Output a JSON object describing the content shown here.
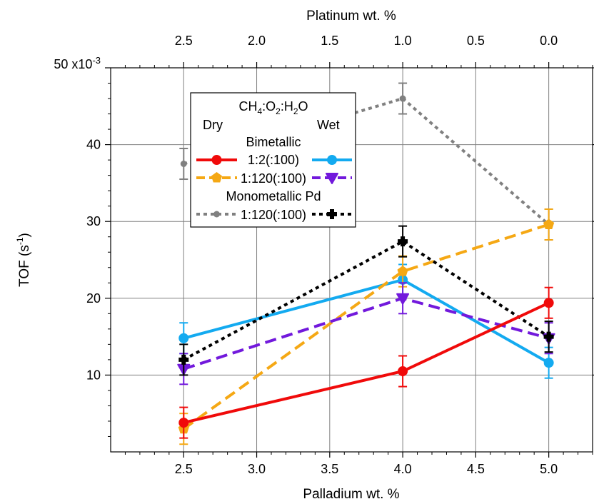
{
  "chart_data": {
    "type": "line",
    "title": "",
    "xlabel": "Palladium wt. %",
    "x2label": "Platinum wt. %",
    "ylabel_main": "TOF (s",
    "ylabel_sup": "-1",
    "ylabel_close": ")",
    "xlim": [
      2.0,
      5.3
    ],
    "ylim": [
      0,
      50
    ],
    "x_ticks": [
      2.5,
      3.0,
      3.5,
      4.0,
      4.5,
      5.0
    ],
    "x_tick_labels": [
      "2.5",
      "3.0",
      "3.5",
      "4.0",
      "4.5",
      "5.0"
    ],
    "x2_ticks": [
      2.5,
      3.0,
      3.5,
      4.0,
      4.5,
      5.0
    ],
    "x2_tick_labels": [
      "2.5",
      "2.0",
      "1.5",
      "1.0",
      "0.5",
      "0.0"
    ],
    "y_ticks": [
      10,
      20,
      30,
      40,
      50
    ],
    "y_tick_labels": [
      "10",
      "20",
      "30",
      "40",
      "50 x10"
    ],
    "y_exp_label": "-3",
    "grid": true,
    "legend_position": "top-left",
    "legend": {
      "header_main": "CH",
      "header_sub1": "4",
      "header_mid": ":O",
      "header_sub2": "2",
      "header_end": ":H",
      "header_sub3": "2",
      "header_tail": "O",
      "dry": "Dry",
      "wet": "Wet",
      "group1": "Bimetallic",
      "row1": "1:2(:100)",
      "row2": "1:120(:100)",
      "group2": "Monometallic Pd",
      "row3": "1:120(:100)"
    },
    "series": [
      {
        "key": "bi_12_dry",
        "color": "#f00a0a",
        "dash": "",
        "marker": "circle",
        "points": [
          [
            2.5,
            3.8,
            2.0
          ],
          [
            4.0,
            10.5,
            2.0
          ],
          [
            5.0,
            19.4,
            2.0
          ]
        ]
      },
      {
        "key": "bi_12_wet",
        "color": "#13aaf0",
        "dash": "",
        "marker": "circle",
        "points": [
          [
            2.5,
            14.8,
            2.0
          ],
          [
            4.0,
            22.4,
            2.0
          ],
          [
            5.0,
            11.6,
            2.0
          ]
        ]
      },
      {
        "key": "bi_1120_dry",
        "color": "#f5a814",
        "dash": "16,8",
        "marker": "pentagon",
        "points": [
          [
            2.5,
            3.0,
            2.0
          ],
          [
            4.0,
            23.5,
            2.0
          ],
          [
            5.0,
            29.6,
            2.0
          ]
        ]
      },
      {
        "key": "bi_1120_wet",
        "color": "#7219dc",
        "dash": "16,8",
        "marker": "triangle-down",
        "points": [
          [
            2.5,
            10.8,
            2.0
          ],
          [
            4.0,
            20.0,
            2.0
          ],
          [
            5.0,
            14.8,
            2.0
          ]
        ]
      },
      {
        "key": "mono_1120_dry",
        "color": "#808080",
        "dash": "5,5",
        "marker": "small-circle",
        "points": [
          [
            2.5,
            37.5,
            2.0
          ],
          [
            4.0,
            46.0,
            2.0
          ],
          [
            5.0,
            29.6,
            2.0
          ]
        ]
      },
      {
        "key": "mono_1120_wet",
        "color": "#000000",
        "dash": "5,5",
        "marker": "cross",
        "points": [
          [
            2.5,
            12.0,
            2.0
          ],
          [
            4.0,
            27.4,
            2.0
          ],
          [
            5.0,
            15.0,
            2.0
          ]
        ]
      }
    ]
  }
}
